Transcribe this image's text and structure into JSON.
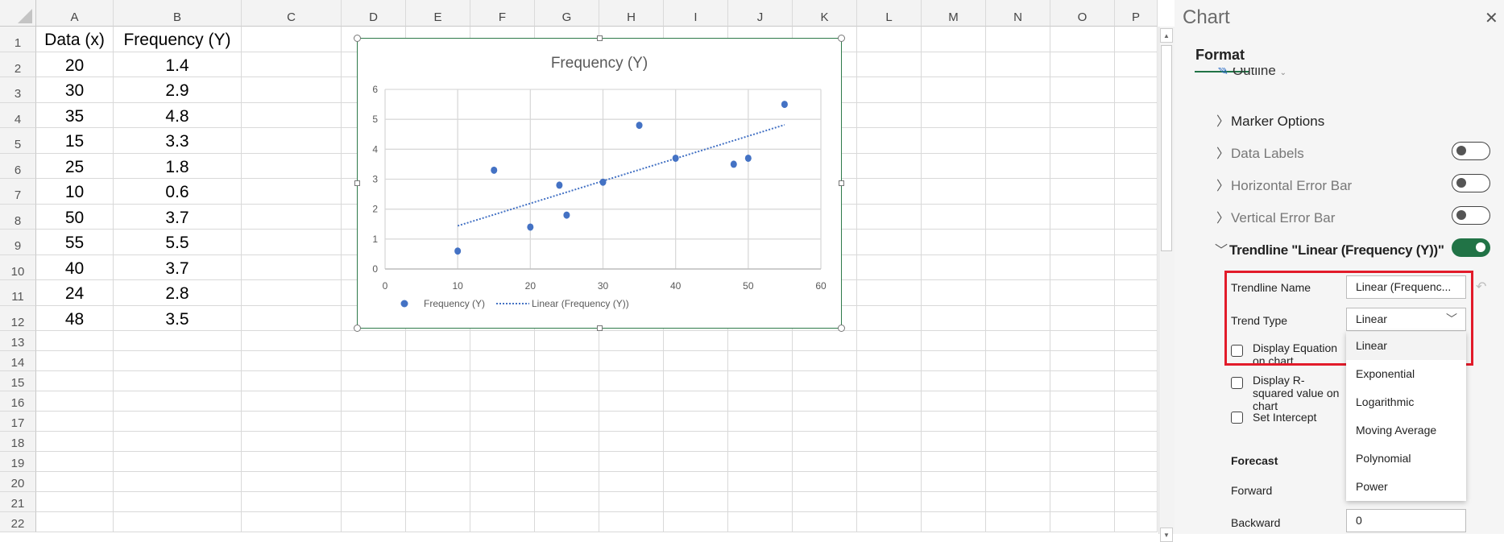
{
  "sheet": {
    "columns": [
      "A",
      "B",
      "C",
      "D",
      "E",
      "F",
      "G",
      "H",
      "I",
      "J",
      "K",
      "L",
      "M",
      "N",
      "O",
      "P"
    ],
    "rows": [
      [
        "Data (x)",
        "Frequency (Y)"
      ],
      [
        "20",
        "1.4"
      ],
      [
        "30",
        "2.9"
      ],
      [
        "35",
        "4.8"
      ],
      [
        "15",
        "3.3"
      ],
      [
        "25",
        "1.8"
      ],
      [
        "10",
        "0.6"
      ],
      [
        "50",
        "3.7"
      ],
      [
        "55",
        "5.5"
      ],
      [
        "40",
        "3.7"
      ],
      [
        "24",
        "2.8"
      ],
      [
        "48",
        "3.5"
      ]
    ],
    "row_count": 22
  },
  "chart_data": {
    "type": "scatter",
    "title": "Frequency (Y)",
    "x": [
      20,
      30,
      35,
      15,
      25,
      10,
      50,
      55,
      40,
      24,
      48
    ],
    "series": [
      {
        "name": "Frequency (Y)",
        "values": [
          1.4,
          2.9,
          4.8,
          3.3,
          1.8,
          0.6,
          3.7,
          5.5,
          3.7,
          2.8,
          3.5
        ],
        "color": "#4472c4"
      }
    ],
    "trendline": {
      "name": "Linear (Frequency (Y))",
      "type": "linear",
      "style": "dotted",
      "color": "#4472c4"
    },
    "xlim": [
      0,
      60
    ],
    "ylim": [
      0,
      6
    ],
    "xticks": [
      "0",
      "10",
      "20",
      "30",
      "40",
      "50",
      "60"
    ],
    "yticks": [
      "0",
      "1",
      "2",
      "3",
      "4",
      "5",
      "6"
    ],
    "grid": true,
    "legend": "bottom"
  },
  "panel": {
    "title": "Chart",
    "close_icon": "close-icon",
    "tab": "Format",
    "outline_label": "Outline",
    "sections": [
      {
        "label": "Marker Options",
        "toggle": null
      },
      {
        "label": "Data Labels",
        "toggle": false
      },
      {
        "label": "Horizontal Error Bar",
        "toggle": false
      },
      {
        "label": "Vertical Error Bar",
        "toggle": false
      },
      {
        "label": "Trendline \"Linear (Frequency (Y))\"",
        "toggle": true,
        "expanded": true
      }
    ],
    "trendline_name_label": "Trendline Name",
    "trendline_name_value": "Linear (Frequenc...",
    "trend_type_label": "Trend Type",
    "trend_type_value": "Linear",
    "trend_type_options": [
      "Linear",
      "Exponential",
      "Logarithmic",
      "Moving Average",
      "Polynomial",
      "Power"
    ],
    "display_equation_label": "Display Equation on chart",
    "display_rsquared_label": "Display R-squared value on chart",
    "set_intercept_label": "Set Intercept",
    "forecast_label": "Forecast",
    "forward_label": "Forward",
    "backward_label": "Backward",
    "backward_value": "0",
    "highlight_color": "#e21b2a",
    "accent_color": "#217346"
  }
}
